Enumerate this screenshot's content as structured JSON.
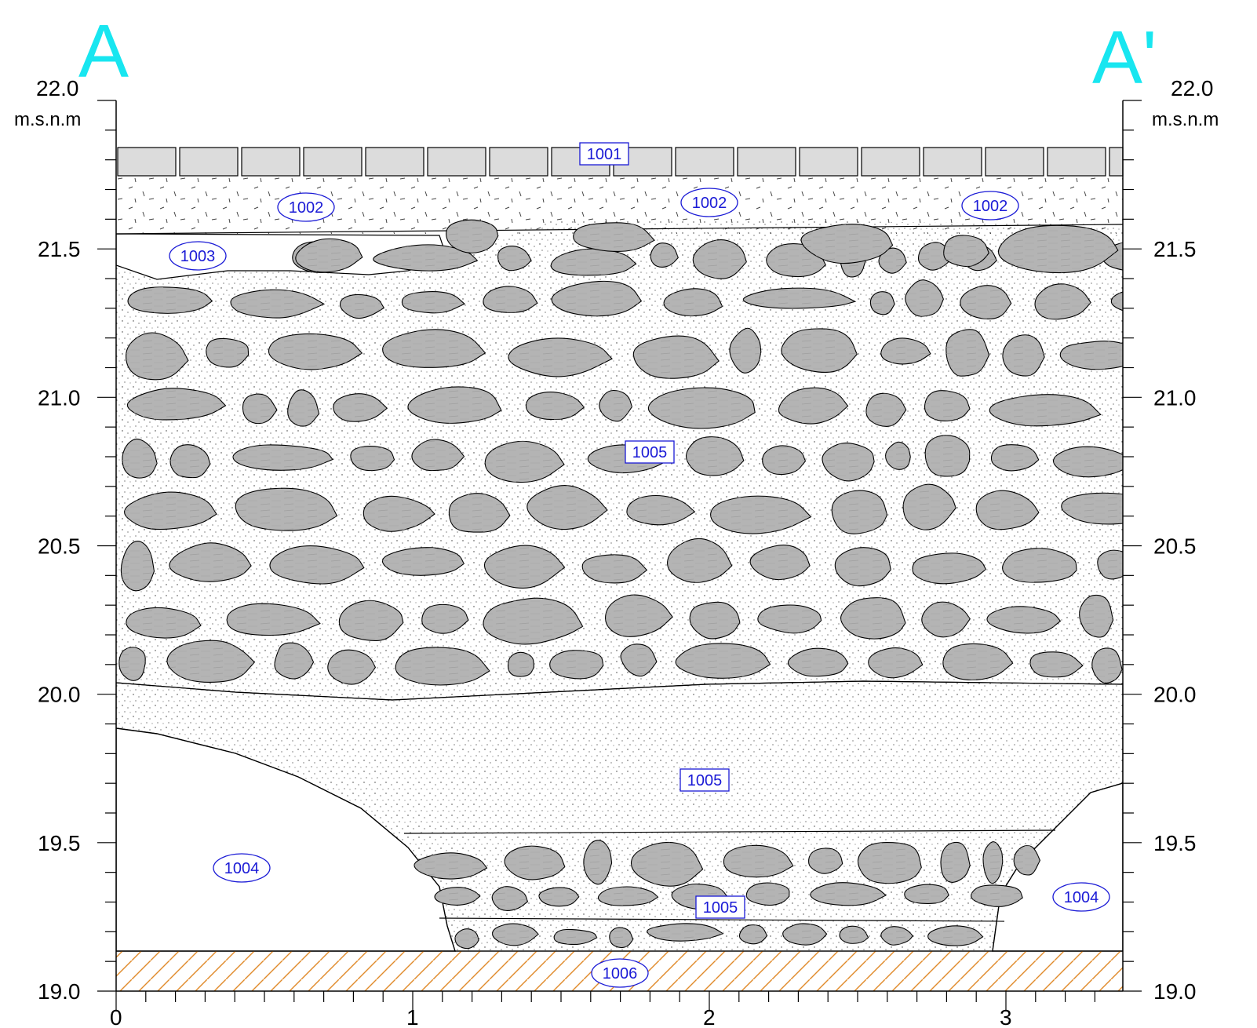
{
  "corners": {
    "left": "A",
    "right": "A'"
  },
  "vertical_axis": {
    "unit": "m.s.n.m",
    "ticks": [
      "22.0",
      "21.5",
      "21.0",
      "20.5",
      "20.0",
      "19.5",
      "19.0"
    ]
  },
  "horizontal_axis": {
    "ticks": [
      "0",
      "1",
      "2",
      "3"
    ]
  },
  "units": [
    {
      "id": "1001"
    },
    {
      "id": "1002"
    },
    {
      "id": "1003"
    },
    {
      "id": "1004"
    },
    {
      "id": "1005"
    },
    {
      "id": "1006"
    }
  ],
  "labels": [
    {
      "text": "1001",
      "style": "box"
    },
    {
      "text": "1002",
      "style": "ellipse"
    },
    {
      "text": "1002",
      "style": "ellipse"
    },
    {
      "text": "1002",
      "style": "ellipse"
    },
    {
      "text": "1003",
      "style": "ellipse"
    },
    {
      "text": "1005",
      "style": "box"
    },
    {
      "text": "1005",
      "style": "box"
    },
    {
      "text": "1004",
      "style": "ellipse"
    },
    {
      "text": "1004",
      "style": "ellipse"
    },
    {
      "text": "1005",
      "style": "box"
    },
    {
      "text": "1006",
      "style": "ellipse"
    }
  ],
  "colors": {
    "stone": "#b4b4b4",
    "slab": "#dcdcdc",
    "label": "#1a1ad6",
    "corner_letters": "#18e6f0",
    "hatch": "#e08a2a"
  }
}
